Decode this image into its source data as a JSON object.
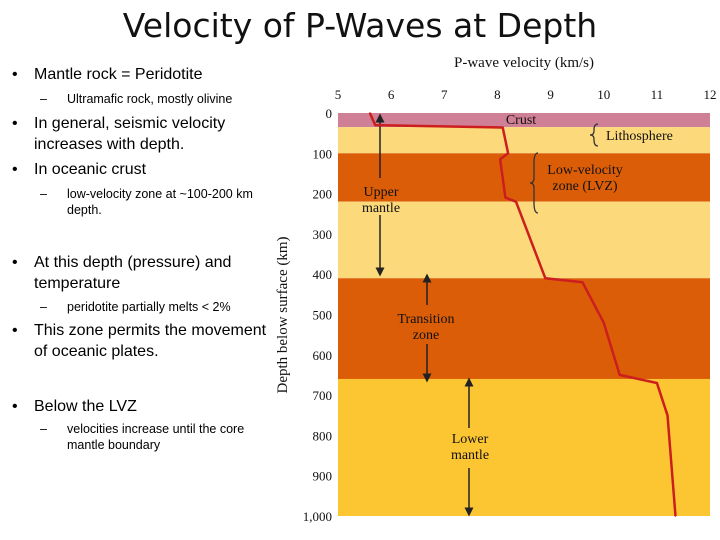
{
  "title": "Velocity of P-Waves at Depth",
  "bullets": [
    {
      "text": "Mantle rock = Peridotite"
    },
    {
      "text": "Ultramafic rock, mostly olivine"
    },
    {
      "text": "In general, seismic velocity increases with depth."
    },
    {
      "text": "In oceanic crust"
    },
    {
      "text": "low-velocity zone at ~100-200 km depth."
    },
    {
      "text": "At this depth (pressure) and temperature"
    },
    {
      "text": "peridotite partially melts < 2%"
    },
    {
      "text": "This zone permits the movement of oceanic plates."
    },
    {
      "text": "Below the LVZ"
    },
    {
      "text": "velocities increase until the core mantle boundary"
    }
  ],
  "chart_data": {
    "type": "line",
    "title": "P-wave velocity (km/s)",
    "xlabel": "P-wave velocity (km/s)",
    "ylabel": "Depth below surface (km)",
    "xlim": [
      5,
      12
    ],
    "ylim": [
      0,
      1000
    ],
    "x_ticks": [
      "5",
      "6",
      "7",
      "8",
      "9",
      "10",
      "11",
      "12"
    ],
    "y_ticks": [
      "0",
      "100",
      "200",
      "300",
      "400",
      "500",
      "600",
      "700",
      "800",
      "900",
      "1,000"
    ],
    "series": [
      {
        "name": "P-wave velocity",
        "color": "#cc1e1e",
        "points": [
          [
            5.6,
            0
          ],
          [
            5.7,
            30
          ],
          [
            8.1,
            36
          ],
          [
            8.2,
            100
          ],
          [
            8.05,
            115
          ],
          [
            8.15,
            210
          ],
          [
            8.35,
            220
          ],
          [
            8.9,
            410
          ],
          [
            9.6,
            420
          ],
          [
            10.0,
            520
          ],
          [
            10.3,
            650
          ],
          [
            11.0,
            670
          ],
          [
            11.2,
            750
          ],
          [
            11.35,
            1000
          ]
        ]
      }
    ],
    "bands": [
      {
        "from": 0,
        "to": 35,
        "color": "#cf7f96"
      },
      {
        "from": 35,
        "to": 100,
        "color": "#fcd97a"
      },
      {
        "from": 100,
        "to": 220,
        "color": "#db5d08"
      },
      {
        "from": 220,
        "to": 410,
        "color": "#fcd97a"
      },
      {
        "from": 410,
        "to": 660,
        "color": "#db5d08"
      },
      {
        "from": 660,
        "to": 1000,
        "color": "#fcc633"
      }
    ],
    "annotations": [
      {
        "id": "crust",
        "label": "Crust",
        "lines": [
          "Crust"
        ]
      },
      {
        "id": "lithosphere",
        "label": "Lithosphere",
        "lines": [
          "Lithosphere"
        ]
      },
      {
        "id": "lvz",
        "label": "Low-velocity zone (LVZ)",
        "lines": [
          "Low-velocity",
          "zone (LVZ)"
        ]
      },
      {
        "id": "upper-mantle",
        "label": "Upper mantle",
        "lines": [
          "Upper",
          "mantle"
        ]
      },
      {
        "id": "transition",
        "label": "Transition zone",
        "lines": [
          "Transition",
          "zone"
        ]
      },
      {
        "id": "lower-mantle",
        "label": "Lower mantle",
        "lines": [
          "Lower",
          "mantle"
        ]
      }
    ]
  }
}
